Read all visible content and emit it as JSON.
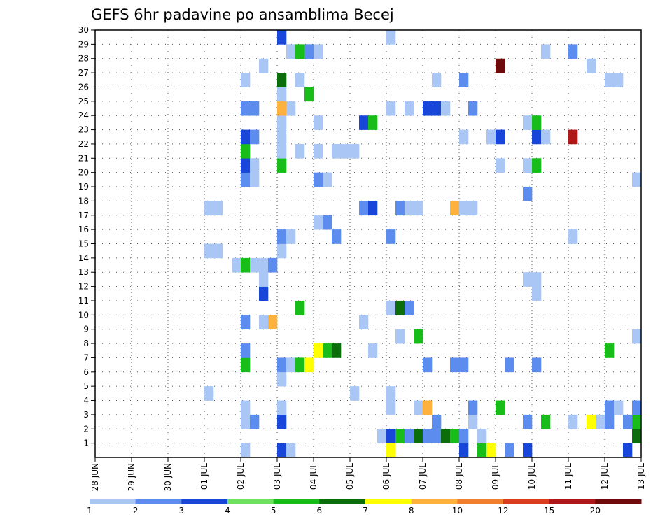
{
  "chart_data": {
    "type": "heatmap",
    "title": "GEFS 6hr padavine po ansamblima Becej",
    "xlabel": "",
    "ylabel": "",
    "x_ticks": [
      "28 JUN",
      "29 JUN",
      "30 JUN",
      "01 JUL",
      "02 JUL",
      "03 JUL",
      "04 JUL",
      "05 JUL",
      "06 JUL",
      "07 JUL",
      "08 JUL",
      "09 JUL",
      "10 JUL",
      "11 JUL",
      "12 JUL",
      "13 JUL"
    ],
    "y_ticks": [
      1,
      2,
      3,
      4,
      5,
      6,
      7,
      8,
      9,
      10,
      11,
      12,
      13,
      14,
      15,
      16,
      17,
      18,
      19,
      20,
      21,
      22,
      23,
      24,
      25,
      26,
      27,
      28,
      29,
      30
    ],
    "xlim": [
      0,
      60
    ],
    "ylim": [
      0,
      30
    ],
    "x_unit": "6-hour step from 28 JUN 00Z",
    "y_unit": "ensemble member",
    "grid": true,
    "legend": {
      "placement": "bottom",
      "labels": [
        "1",
        "2",
        "3",
        "4",
        "5",
        "6",
        "7",
        "8",
        "10",
        "12",
        "15",
        "20"
      ],
      "colors": [
        "#aac6f5",
        "#5c8ced",
        "#1846d8",
        "#6fe060",
        "#19bd19",
        "#0b6e0b",
        "#ffff00",
        "#ffb13e",
        "#f08030",
        "#dd3c20",
        "#b01818",
        "#6e0a0a"
      ]
    },
    "cells": [
      {
        "x": 16,
        "y": 0,
        "v": 1
      },
      {
        "x": 20,
        "y": 0,
        "v": 3
      },
      {
        "x": 21,
        "y": 0,
        "v": 1
      },
      {
        "x": 32,
        "y": 0,
        "v": 7
      },
      {
        "x": 40,
        "y": 0,
        "v": 3
      },
      {
        "x": 42,
        "y": 0,
        "v": 5
      },
      {
        "x": 43,
        "y": 0,
        "v": 7
      },
      {
        "x": 45,
        "y": 0,
        "v": 2
      },
      {
        "x": 47,
        "y": 0,
        "v": 3
      },
      {
        "x": 58,
        "y": 0,
        "v": 3
      },
      {
        "x": 31,
        "y": 1,
        "v": 1
      },
      {
        "x": 32,
        "y": 1,
        "v": 3
      },
      {
        "x": 33,
        "y": 1,
        "v": 5
      },
      {
        "x": 34,
        "y": 1,
        "v": 2
      },
      {
        "x": 35,
        "y": 1,
        "v": 6
      },
      {
        "x": 36,
        "y": 1,
        "v": 2
      },
      {
        "x": 37,
        "y": 1,
        "v": 2
      },
      {
        "x": 38,
        "y": 1,
        "v": 6
      },
      {
        "x": 39,
        "y": 1,
        "v": 5
      },
      {
        "x": 40,
        "y": 1,
        "v": 2
      },
      {
        "x": 42,
        "y": 1,
        "v": 1
      },
      {
        "x": 59,
        "y": 1,
        "v": 6
      },
      {
        "x": 16,
        "y": 2,
        "v": 1
      },
      {
        "x": 17,
        "y": 2,
        "v": 2
      },
      {
        "x": 20,
        "y": 2,
        "v": 3
      },
      {
        "x": 37,
        "y": 2,
        "v": 2
      },
      {
        "x": 41,
        "y": 2,
        "v": 1
      },
      {
        "x": 47,
        "y": 2,
        "v": 2
      },
      {
        "x": 49,
        "y": 2,
        "v": 5
      },
      {
        "x": 52,
        "y": 2,
        "v": 1
      },
      {
        "x": 54,
        "y": 2,
        "v": 7
      },
      {
        "x": 55,
        "y": 2,
        "v": 1
      },
      {
        "x": 56,
        "y": 2,
        "v": 2
      },
      {
        "x": 58,
        "y": 2,
        "v": 2
      },
      {
        "x": 59,
        "y": 2,
        "v": 5
      },
      {
        "x": 16,
        "y": 3,
        "v": 1
      },
      {
        "x": 20,
        "y": 3,
        "v": 1
      },
      {
        "x": 32,
        "y": 3,
        "v": 1
      },
      {
        "x": 35,
        "y": 3,
        "v": 1
      },
      {
        "x": 36,
        "y": 3,
        "v": 8
      },
      {
        "x": 41,
        "y": 3,
        "v": 2
      },
      {
        "x": 44,
        "y": 3,
        "v": 5
      },
      {
        "x": 56,
        "y": 3,
        "v": 2
      },
      {
        "x": 57,
        "y": 3,
        "v": 1
      },
      {
        "x": 59,
        "y": 3,
        "v": 2
      },
      {
        "x": 12,
        "y": 4,
        "v": 1
      },
      {
        "x": 28,
        "y": 4,
        "v": 1
      },
      {
        "x": 32,
        "y": 4,
        "v": 1
      },
      {
        "x": 20,
        "y": 5,
        "v": 1
      },
      {
        "x": 16,
        "y": 6,
        "v": 5
      },
      {
        "x": 20,
        "y": 6,
        "v": 2
      },
      {
        "x": 21,
        "y": 6,
        "v": 1
      },
      {
        "x": 22,
        "y": 6,
        "v": 5
      },
      {
        "x": 23,
        "y": 6,
        "v": 7
      },
      {
        "x": 36,
        "y": 6,
        "v": 2
      },
      {
        "x": 39,
        "y": 6,
        "v": 2
      },
      {
        "x": 40,
        "y": 6,
        "v": 2
      },
      {
        "x": 45,
        "y": 6,
        "v": 2
      },
      {
        "x": 48,
        "y": 6,
        "v": 2
      },
      {
        "x": 16,
        "y": 7,
        "v": 2
      },
      {
        "x": 24,
        "y": 7,
        "v": 7
      },
      {
        "x": 25,
        "y": 7,
        "v": 5
      },
      {
        "x": 26,
        "y": 7,
        "v": 6
      },
      {
        "x": 30,
        "y": 7,
        "v": 1
      },
      {
        "x": 56,
        "y": 7,
        "v": 5
      },
      {
        "x": 33,
        "y": 8,
        "v": 1
      },
      {
        "x": 35,
        "y": 8,
        "v": 5
      },
      {
        "x": 59,
        "y": 8,
        "v": 1
      },
      {
        "x": 16,
        "y": 9,
        "v": 2
      },
      {
        "x": 18,
        "y": 9,
        "v": 1
      },
      {
        "x": 19,
        "y": 9,
        "v": 8
      },
      {
        "x": 29,
        "y": 9,
        "v": 1
      },
      {
        "x": 32,
        "y": 10,
        "v": 1
      },
      {
        "x": 33,
        "y": 10,
        "v": 6
      },
      {
        "x": 34,
        "y": 10,
        "v": 2
      },
      {
        "x": 22,
        "y": 10,
        "v": 5
      },
      {
        "x": 18,
        "y": 11,
        "v": 3
      },
      {
        "x": 48,
        "y": 11,
        "v": 1
      },
      {
        "x": 18,
        "y": 12,
        "v": 1
      },
      {
        "x": 47,
        "y": 12,
        "v": 1
      },
      {
        "x": 48,
        "y": 12,
        "v": 1
      },
      {
        "x": 15,
        "y": 13,
        "v": 1
      },
      {
        "x": 16,
        "y": 13,
        "v": 5
      },
      {
        "x": 17,
        "y": 13,
        "v": 1
      },
      {
        "x": 18,
        "y": 13,
        "v": 1
      },
      {
        "x": 19,
        "y": 13,
        "v": 2
      },
      {
        "x": 12,
        "y": 14,
        "v": 1
      },
      {
        "x": 13,
        "y": 14,
        "v": 1
      },
      {
        "x": 20,
        "y": 14,
        "v": 1
      },
      {
        "x": 20,
        "y": 15,
        "v": 2
      },
      {
        "x": 21,
        "y": 15,
        "v": 1
      },
      {
        "x": 26,
        "y": 15,
        "v": 2
      },
      {
        "x": 32,
        "y": 15,
        "v": 2
      },
      {
        "x": 52,
        "y": 15,
        "v": 1
      },
      {
        "x": 24,
        "y": 16,
        "v": 1
      },
      {
        "x": 25,
        "y": 16,
        "v": 2
      },
      {
        "x": 12,
        "y": 17,
        "v": 1
      },
      {
        "x": 13,
        "y": 17,
        "v": 1
      },
      {
        "x": 29,
        "y": 17,
        "v": 2
      },
      {
        "x": 30,
        "y": 17,
        "v": 3
      },
      {
        "x": 33,
        "y": 17,
        "v": 2
      },
      {
        "x": 34,
        "y": 17,
        "v": 1
      },
      {
        "x": 35,
        "y": 17,
        "v": 1
      },
      {
        "x": 39,
        "y": 17,
        "v": 8
      },
      {
        "x": 40,
        "y": 17,
        "v": 1
      },
      {
        "x": 41,
        "y": 17,
        "v": 1
      },
      {
        "x": 47,
        "y": 18,
        "v": 2
      },
      {
        "x": 16,
        "y": 19,
        "v": 2
      },
      {
        "x": 17,
        "y": 19,
        "v": 1
      },
      {
        "x": 24,
        "y": 19,
        "v": 2
      },
      {
        "x": 25,
        "y": 19,
        "v": 1
      },
      {
        "x": 59,
        "y": 19,
        "v": 1
      },
      {
        "x": 16,
        "y": 20,
        "v": 3
      },
      {
        "x": 17,
        "y": 20,
        "v": 1
      },
      {
        "x": 20,
        "y": 20,
        "v": 5
      },
      {
        "x": 44,
        "y": 20,
        "v": 1
      },
      {
        "x": 47,
        "y": 20,
        "v": 1
      },
      {
        "x": 48,
        "y": 20,
        "v": 5
      },
      {
        "x": 16,
        "y": 21,
        "v": 5
      },
      {
        "x": 20,
        "y": 21,
        "v": 1
      },
      {
        "x": 22,
        "y": 21,
        "v": 1
      },
      {
        "x": 24,
        "y": 21,
        "v": 1
      },
      {
        "x": 26,
        "y": 21,
        "v": 1
      },
      {
        "x": 27,
        "y": 21,
        "v": 1
      },
      {
        "x": 28,
        "y": 21,
        "v": 1
      },
      {
        "x": 16,
        "y": 22,
        "v": 3
      },
      {
        "x": 17,
        "y": 22,
        "v": 2
      },
      {
        "x": 20,
        "y": 22,
        "v": 1
      },
      {
        "x": 40,
        "y": 22,
        "v": 1
      },
      {
        "x": 43,
        "y": 22,
        "v": 1
      },
      {
        "x": 44,
        "y": 22,
        "v": 3
      },
      {
        "x": 48,
        "y": 22,
        "v": 3
      },
      {
        "x": 49,
        "y": 22,
        "v": 1
      },
      {
        "x": 52,
        "y": 22,
        "v": 15
      },
      {
        "x": 20,
        "y": 23,
        "v": 1
      },
      {
        "x": 24,
        "y": 23,
        "v": 1
      },
      {
        "x": 29,
        "y": 23,
        "v": 3
      },
      {
        "x": 30,
        "y": 23,
        "v": 5
      },
      {
        "x": 47,
        "y": 23,
        "v": 1
      },
      {
        "x": 48,
        "y": 23,
        "v": 5
      },
      {
        "x": 16,
        "y": 24,
        "v": 2
      },
      {
        "x": 17,
        "y": 24,
        "v": 2
      },
      {
        "x": 20,
        "y": 24,
        "v": 8
      },
      {
        "x": 21,
        "y": 24,
        "v": 1
      },
      {
        "x": 32,
        "y": 24,
        "v": 1
      },
      {
        "x": 34,
        "y": 24,
        "v": 1
      },
      {
        "x": 36,
        "y": 24,
        "v": 3
      },
      {
        "x": 37,
        "y": 24,
        "v": 3
      },
      {
        "x": 38,
        "y": 24,
        "v": 1
      },
      {
        "x": 41,
        "y": 24,
        "v": 2
      },
      {
        "x": 20,
        "y": 25,
        "v": 1
      },
      {
        "x": 23,
        "y": 25,
        "v": 5
      },
      {
        "x": 16,
        "y": 26,
        "v": 1
      },
      {
        "x": 20,
        "y": 26,
        "v": 6
      },
      {
        "x": 22,
        "y": 26,
        "v": 1
      },
      {
        "x": 37,
        "y": 26,
        "v": 1
      },
      {
        "x": 40,
        "y": 26,
        "v": 2
      },
      {
        "x": 56,
        "y": 26,
        "v": 1
      },
      {
        "x": 57,
        "y": 26,
        "v": 1
      },
      {
        "x": 18,
        "y": 27,
        "v": 1
      },
      {
        "x": 44,
        "y": 27,
        "v": 20
      },
      {
        "x": 54,
        "y": 27,
        "v": 1
      },
      {
        "x": 21,
        "y": 28,
        "v": 1
      },
      {
        "x": 22,
        "y": 28,
        "v": 5
      },
      {
        "x": 23,
        "y": 28,
        "v": 2
      },
      {
        "x": 24,
        "y": 28,
        "v": 1
      },
      {
        "x": 49,
        "y": 28,
        "v": 1
      },
      {
        "x": 52,
        "y": 28,
        "v": 2
      },
      {
        "x": 20,
        "y": 29,
        "v": 3
      },
      {
        "x": 32,
        "y": 29,
        "v": 1
      }
    ]
  }
}
